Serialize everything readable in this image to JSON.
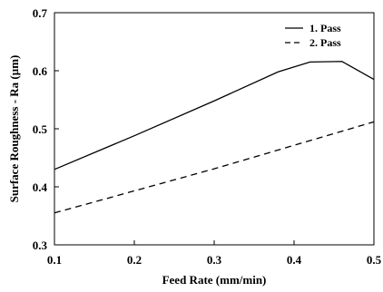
{
  "chart_data": {
    "type": "line",
    "xlabel": "Feed Rate (mm/min)",
    "ylabel": "Surface Roughness - Ra (µm)",
    "xlim": [
      0.1,
      0.5
    ],
    "ylim": [
      0.3,
      0.7
    ],
    "xticks": [
      "0.1",
      "0.2",
      "0.3",
      "0.4",
      "0.5"
    ],
    "yticks": [
      "0.3",
      "0.4",
      "0.5",
      "0.6",
      "0.7"
    ],
    "xtick_values": [
      0.1,
      0.2,
      0.3,
      0.4,
      0.5
    ],
    "ytick_values": [
      0.3,
      0.4,
      0.5,
      0.6,
      0.7
    ],
    "grid": false,
    "legend_position": "top-right",
    "series": [
      {
        "name": "1. Pass",
        "style": "solid",
        "color": "#000000",
        "x": [
          0.1,
          0.2,
          0.3,
          0.38,
          0.42,
          0.46,
          0.5
        ],
        "y": [
          0.43,
          0.488,
          0.548,
          0.598,
          0.615,
          0.616,
          0.585
        ]
      },
      {
        "name": "2. Pass",
        "style": "dashed",
        "color": "#000000",
        "x": [
          0.1,
          0.3,
          0.5
        ],
        "y": [
          0.355,
          0.431,
          0.512
        ]
      }
    ]
  }
}
